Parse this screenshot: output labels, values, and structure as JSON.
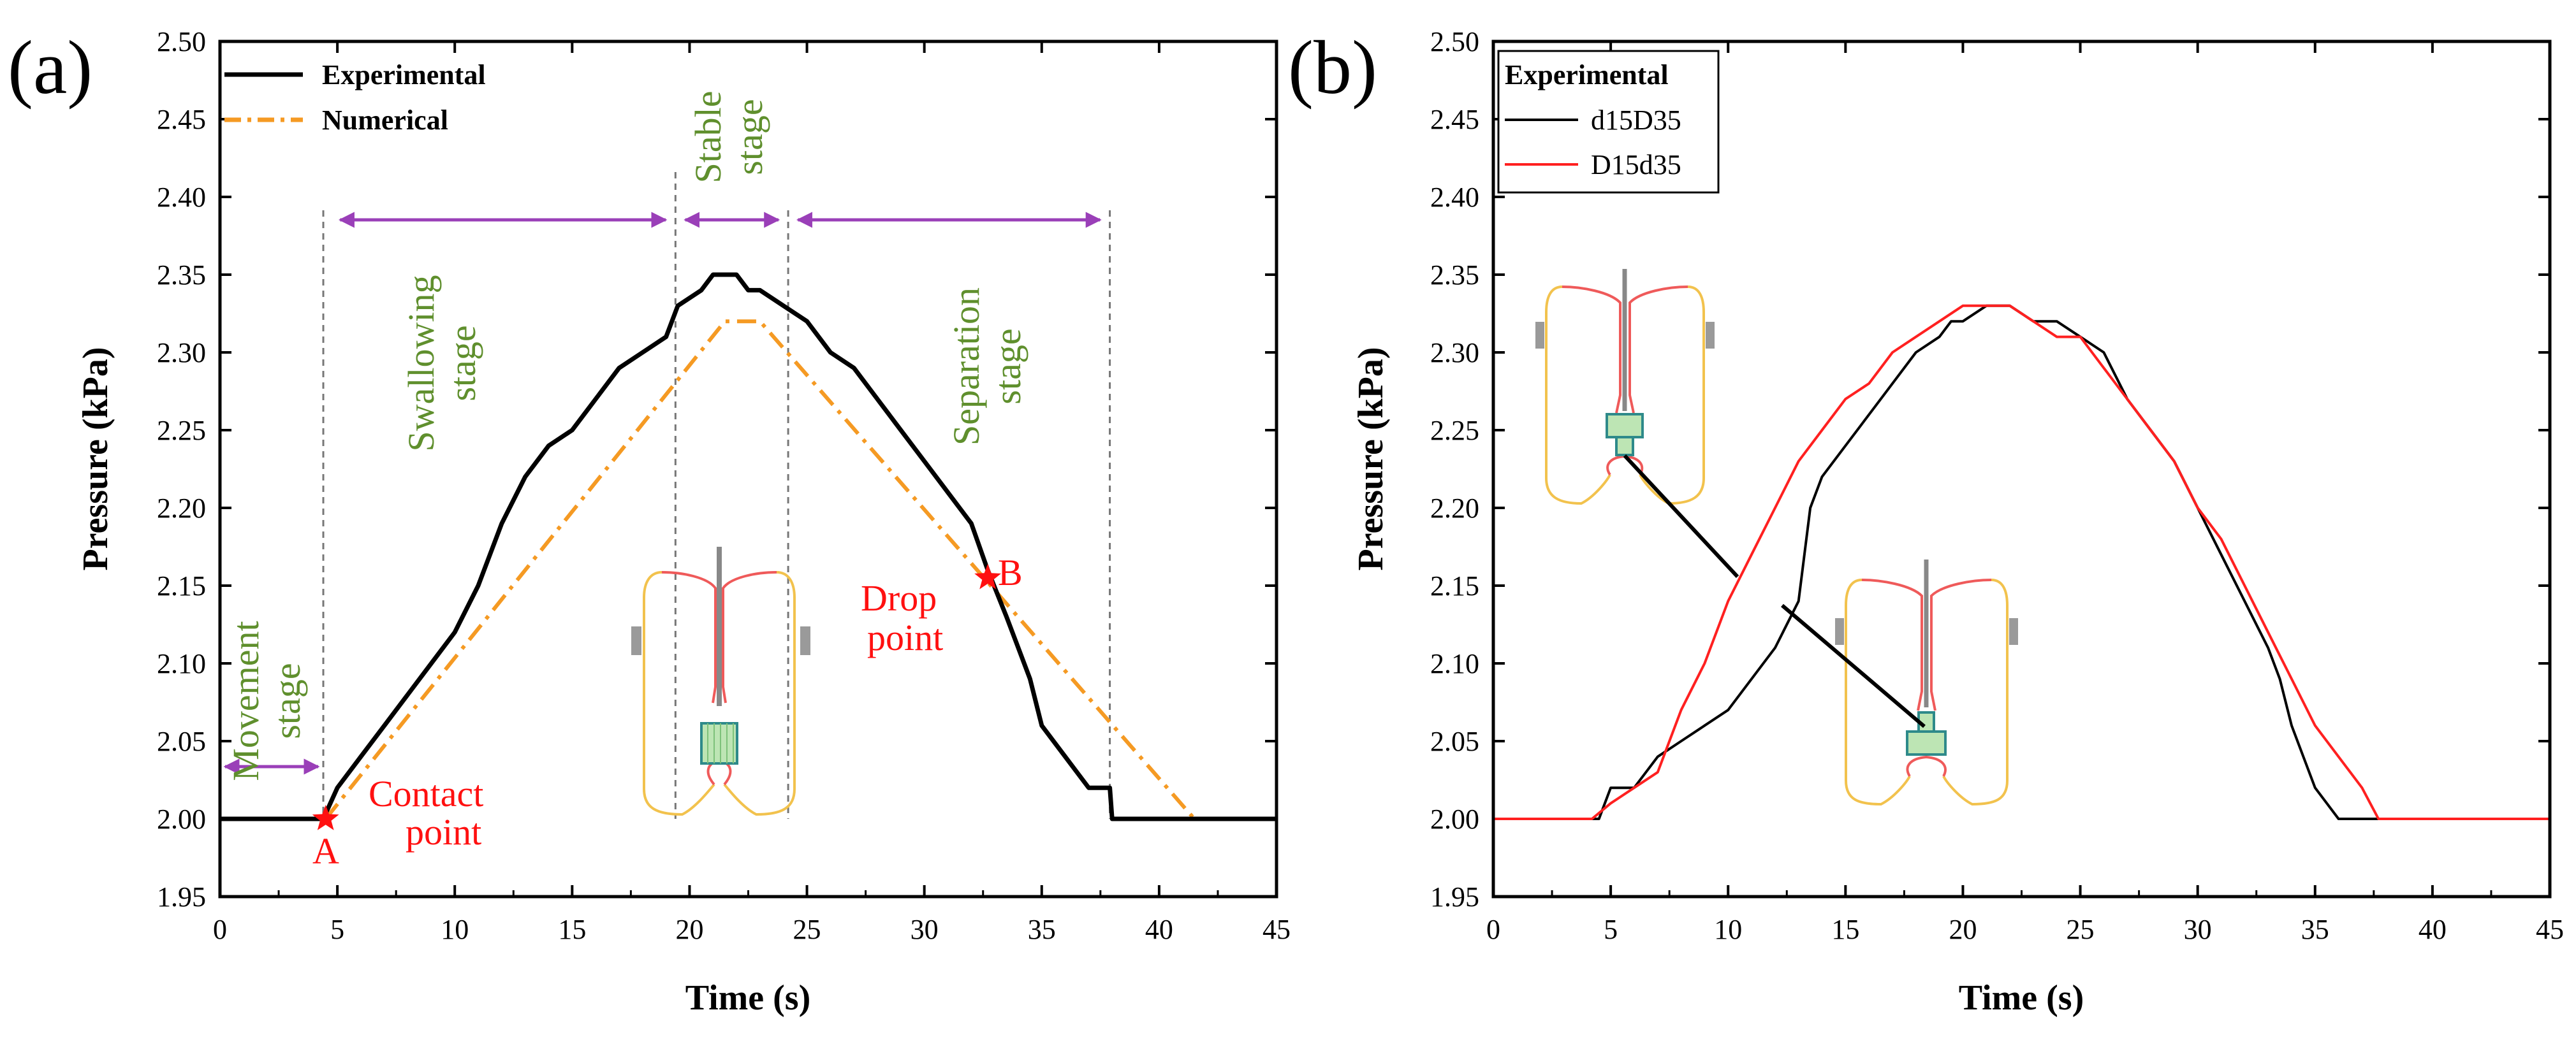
{
  "colors": {
    "experimental": "#000000",
    "numerical": "#f59a23",
    "d15D35": "#000000",
    "D15d35": "#ff2020",
    "stage_text": "#5f8f2d",
    "arrow": "#9a3fb8",
    "marker": "#ff1010"
  },
  "chart_data": [
    {
      "type": "line",
      "panel_label": "(a)",
      "xlabel": "Time (s)",
      "ylabel": "Pressure (kPa)",
      "xlim": [
        0,
        45
      ],
      "ylim": [
        1.95,
        2.5
      ],
      "xticks": [
        0,
        5,
        10,
        15,
        20,
        25,
        30,
        35,
        40,
        45
      ],
      "yticks": [
        1.95,
        2.0,
        2.05,
        2.1,
        2.15,
        2.2,
        2.25,
        2.3,
        2.35,
        2.4,
        2.45,
        2.5
      ],
      "legend": [
        {
          "label": "Experimental",
          "style": "solid"
        },
        {
          "label": "Numerical",
          "style": "dash-dot"
        }
      ],
      "series": [
        {
          "name": "Experimental",
          "x": [
            0,
            4.4,
            5.0,
            6.0,
            7.0,
            8.0,
            9.0,
            10.0,
            11.0,
            12.0,
            13.0,
            14.0,
            15.0,
            16.0,
            17.0,
            18.0,
            19.0,
            19.5,
            20.5,
            21.0,
            22.0,
            22.5,
            23.0,
            24.0,
            25.0,
            26.0,
            27.0,
            28.0,
            29.0,
            30.0,
            31.0,
            32.0,
            32.7,
            33.5,
            34.0,
            34.5,
            35.0,
            35.5,
            36.0,
            36.5,
            37.0,
            37.5,
            37.9,
            38.0,
            45
          ],
          "y": [
            2.0,
            2.0,
            2.02,
            2.04,
            2.06,
            2.08,
            2.1,
            2.12,
            2.15,
            2.19,
            2.22,
            2.24,
            2.25,
            2.27,
            2.29,
            2.3,
            2.31,
            2.33,
            2.34,
            2.35,
            2.35,
            2.34,
            2.34,
            2.33,
            2.32,
            2.3,
            2.29,
            2.27,
            2.25,
            2.23,
            2.21,
            2.19,
            2.16,
            2.13,
            2.11,
            2.09,
            2.06,
            2.05,
            2.04,
            2.03,
            2.02,
            2.02,
            2.02,
            2.0,
            2.0
          ]
        },
        {
          "name": "Numerical",
          "x": [
            4.5,
            21.5,
            23.0,
            41.5
          ],
          "y": [
            2.0,
            2.32,
            2.32,
            2.0
          ]
        }
      ],
      "stage_lines_x": [
        4.4,
        19.4,
        24.2,
        37.9
      ],
      "stages": [
        {
          "label_lines": [
            "Movement",
            "stage"
          ]
        },
        {
          "label_lines": [
            "Swallowing",
            "stage"
          ]
        },
        {
          "label_lines": [
            "Stable",
            "stage"
          ]
        },
        {
          "label_lines": [
            "Separation",
            "stage"
          ]
        }
      ],
      "points": [
        {
          "name": "A",
          "label_lines": [
            "Contact",
            "point"
          ],
          "x": 4.5,
          "y": 2.0
        },
        {
          "name": "B",
          "label_lines": [
            "Drop",
            "point"
          ],
          "x": 32.7,
          "y": 2.155
        }
      ]
    },
    {
      "type": "line",
      "panel_label": "(b)",
      "xlabel": "Time (s)",
      "ylabel": "Pressure (kPa)",
      "xlim": [
        0,
        45
      ],
      "ylim": [
        1.95,
        2.5
      ],
      "xticks": [
        0,
        5,
        10,
        15,
        20,
        25,
        30,
        35,
        40,
        45
      ],
      "yticks": [
        1.95,
        2.0,
        2.05,
        2.1,
        2.15,
        2.2,
        2.25,
        2.3,
        2.35,
        2.4,
        2.45,
        2.5
      ],
      "legend_title": "Experimental",
      "legend": [
        {
          "label": "d15D35"
        },
        {
          "label": "D15d35"
        }
      ],
      "series": [
        {
          "name": "d15D35",
          "x": [
            0,
            4.5,
            5.0,
            6.0,
            7.0,
            8.0,
            9.0,
            10.0,
            11.0,
            12.0,
            13.0,
            13.5,
            14.0,
            15.0,
            16.0,
            17.0,
            18.0,
            19.0,
            19.5,
            20.0,
            21.0,
            22.0,
            23.0,
            24.0,
            25.0,
            26.0,
            27.0,
            28.0,
            29.0,
            30.0,
            31.0,
            32.0,
            33.0,
            33.5,
            34.0,
            34.5,
            35.0,
            35.5,
            36.0,
            45
          ],
          "y": [
            2.0,
            2.0,
            2.02,
            2.02,
            2.04,
            2.05,
            2.06,
            2.07,
            2.09,
            2.11,
            2.14,
            2.2,
            2.22,
            2.24,
            2.26,
            2.28,
            2.3,
            2.31,
            2.32,
            2.32,
            2.33,
            2.33,
            2.32,
            2.32,
            2.31,
            2.3,
            2.27,
            2.25,
            2.23,
            2.2,
            2.17,
            2.14,
            2.11,
            2.09,
            2.06,
            2.04,
            2.02,
            2.01,
            2.0,
            2.0
          ]
        },
        {
          "name": "D15d35",
          "x": [
            0,
            4.2,
            5.0,
            6.0,
            7.0,
            8.0,
            9.0,
            10.0,
            11.0,
            12.0,
            13.0,
            14.0,
            15.0,
            16.0,
            17.0,
            18.0,
            19.0,
            20.0,
            21.0,
            22.0,
            23.0,
            24.0,
            25.0,
            26.0,
            27.0,
            28.0,
            29.0,
            30.0,
            31.0,
            32.0,
            33.0,
            34.0,
            35.0,
            36.0,
            37.0,
            37.7,
            45
          ],
          "y": [
            2.0,
            2.0,
            2.01,
            2.02,
            2.03,
            2.07,
            2.1,
            2.14,
            2.17,
            2.2,
            2.23,
            2.25,
            2.27,
            2.28,
            2.3,
            2.31,
            2.32,
            2.33,
            2.33,
            2.33,
            2.32,
            2.31,
            2.31,
            2.29,
            2.27,
            2.25,
            2.23,
            2.2,
            2.18,
            2.15,
            2.12,
            2.09,
            2.06,
            2.04,
            2.02,
            2.0,
            2.0
          ]
        }
      ]
    }
  ]
}
